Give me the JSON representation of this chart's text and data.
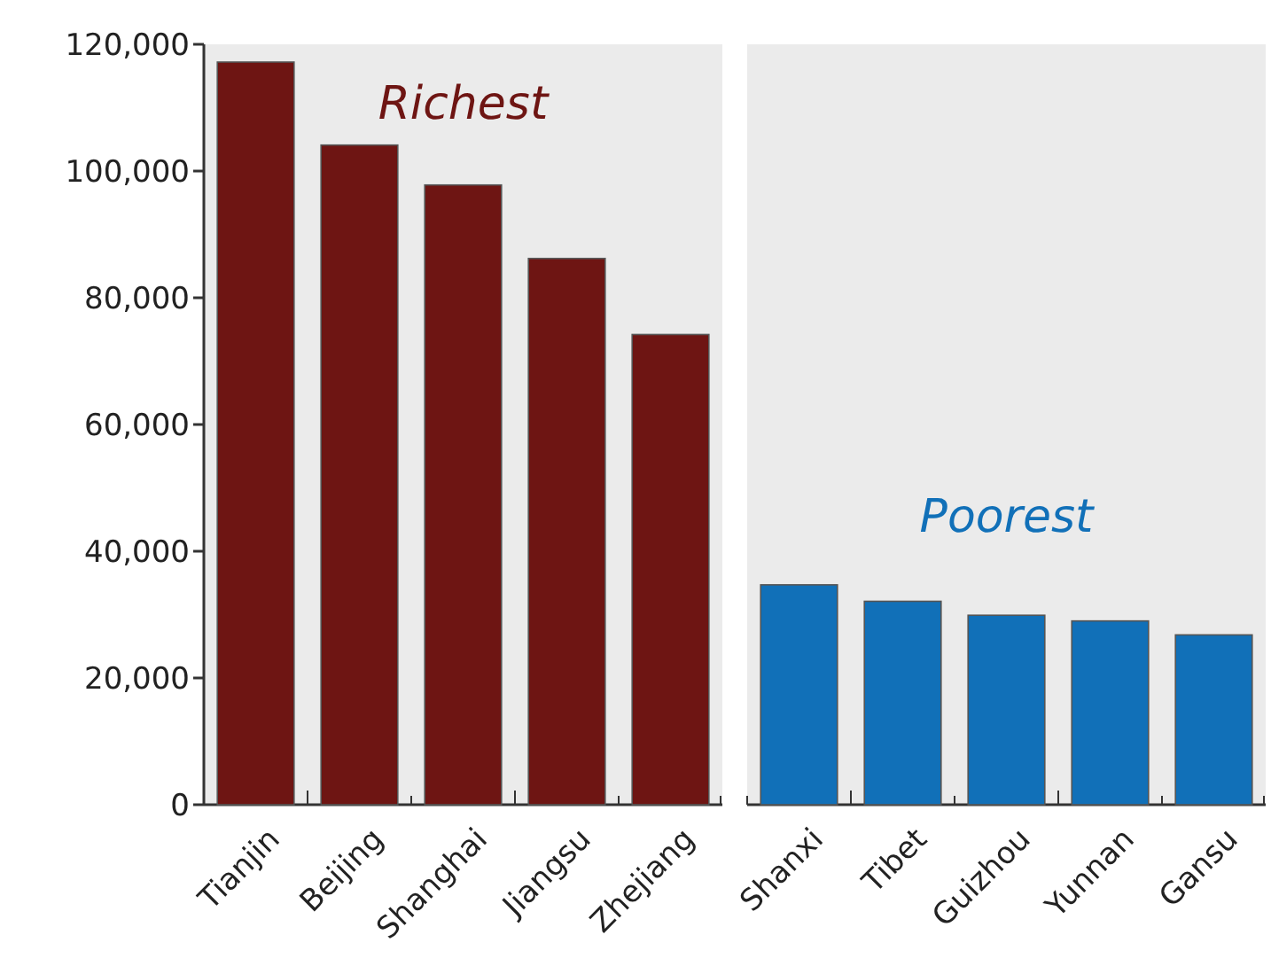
{
  "chart_data": {
    "type": "bar",
    "categories": [
      "Tianjin",
      "Beijing",
      "Shanghai",
      "Jiangsu",
      "Zhejiang",
      "Shanxi",
      "Tibet",
      "Guizhou",
      "Yunnan",
      "Gansu"
    ],
    "series": [
      {
        "name": "Richest",
        "color": "#6e1513",
        "values": [
          117200,
          104100,
          97800,
          86200,
          74200,
          null,
          null,
          null,
          null,
          null
        ]
      },
      {
        "name": "Poorest",
        "color": "#1170b8",
        "values": [
          null,
          null,
          null,
          null,
          null,
          34700,
          32100,
          29900,
          29000,
          26800
        ]
      }
    ],
    "ylim": [
      0,
      120000
    ],
    "yticks": [
      {
        "value": 0,
        "label": "0"
      },
      {
        "value": 20000,
        "label": "20,000"
      },
      {
        "value": 40000,
        "label": "40,000"
      },
      {
        "value": 60000,
        "label": "60,000"
      },
      {
        "value": 80000,
        "label": "80,000"
      },
      {
        "value": 100000,
        "label": "100,000"
      },
      {
        "value": 120000,
        "label": "120,000"
      }
    ],
    "grid": false
  }
}
